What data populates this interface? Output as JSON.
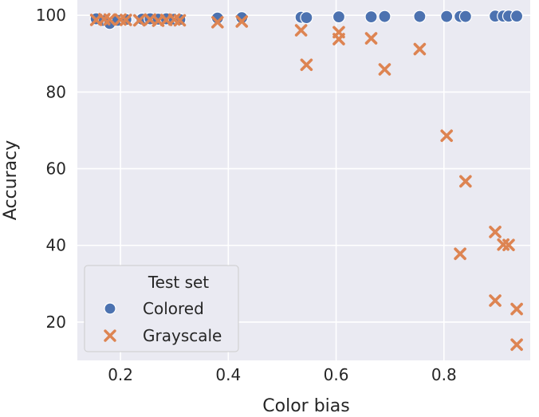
{
  "chart_data": {
    "type": "scatter",
    "xlabel": "Color bias",
    "ylabel": "Accuracy",
    "xlim": [
      0.12,
      0.96
    ],
    "ylim": [
      10,
      104
    ],
    "xticks": [
      0.2,
      0.4,
      0.6,
      0.8
    ],
    "xtick_labels": [
      "0.2",
      "0.4",
      "0.6",
      "0.8"
    ],
    "yticks": [
      20,
      40,
      60,
      80,
      100
    ],
    "ytick_labels": [
      "20",
      "40",
      "60",
      "80",
      "100"
    ],
    "grid": true,
    "legend": {
      "title": "Test set",
      "placement": "lower-left"
    },
    "series": [
      {
        "name": "Colored",
        "marker": "circle",
        "color": "#4c72b0",
        "points": [
          [
            0.155,
            99.1
          ],
          [
            0.17,
            98.6
          ],
          [
            0.18,
            97.9
          ],
          [
            0.195,
            98.7
          ],
          [
            0.21,
            98.9
          ],
          [
            0.24,
            99.0
          ],
          [
            0.255,
            99.1
          ],
          [
            0.27,
            99.0
          ],
          [
            0.285,
            99.1
          ],
          [
            0.3,
            99.0
          ],
          [
            0.31,
            98.9
          ],
          [
            0.38,
            99.3
          ],
          [
            0.425,
            99.4
          ],
          [
            0.535,
            99.5
          ],
          [
            0.545,
            99.4
          ],
          [
            0.605,
            99.6
          ],
          [
            0.665,
            99.6
          ],
          [
            0.69,
            99.7
          ],
          [
            0.755,
            99.7
          ],
          [
            0.805,
            99.7
          ],
          [
            0.83,
            99.7
          ],
          [
            0.84,
            99.7
          ],
          [
            0.895,
            99.8
          ],
          [
            0.91,
            99.8
          ],
          [
            0.92,
            99.8
          ],
          [
            0.935,
            99.8
          ]
        ]
      },
      {
        "name": "Grayscale",
        "marker": "x",
        "color": "#dd8452",
        "points": [
          [
            0.155,
            98.8
          ],
          [
            0.17,
            99.0
          ],
          [
            0.18,
            98.9
          ],
          [
            0.2,
            98.9
          ],
          [
            0.21,
            98.8
          ],
          [
            0.235,
            98.7
          ],
          [
            0.255,
            98.9
          ],
          [
            0.27,
            98.6
          ],
          [
            0.285,
            98.8
          ],
          [
            0.3,
            98.9
          ],
          [
            0.31,
            98.7
          ],
          [
            0.38,
            98.2
          ],
          [
            0.425,
            98.4
          ],
          [
            0.535,
            96.1
          ],
          [
            0.545,
            87.1
          ],
          [
            0.605,
            95.6
          ],
          [
            0.605,
            93.8
          ],
          [
            0.665,
            94.0
          ],
          [
            0.69,
            85.9
          ],
          [
            0.755,
            91.2
          ],
          [
            0.805,
            68.6
          ],
          [
            0.83,
            37.8
          ],
          [
            0.84,
            56.7
          ],
          [
            0.895,
            43.5
          ],
          [
            0.895,
            25.6
          ],
          [
            0.91,
            40.2
          ],
          [
            0.92,
            40.1
          ],
          [
            0.935,
            23.4
          ],
          [
            0.935,
            14.1
          ]
        ]
      }
    ]
  }
}
